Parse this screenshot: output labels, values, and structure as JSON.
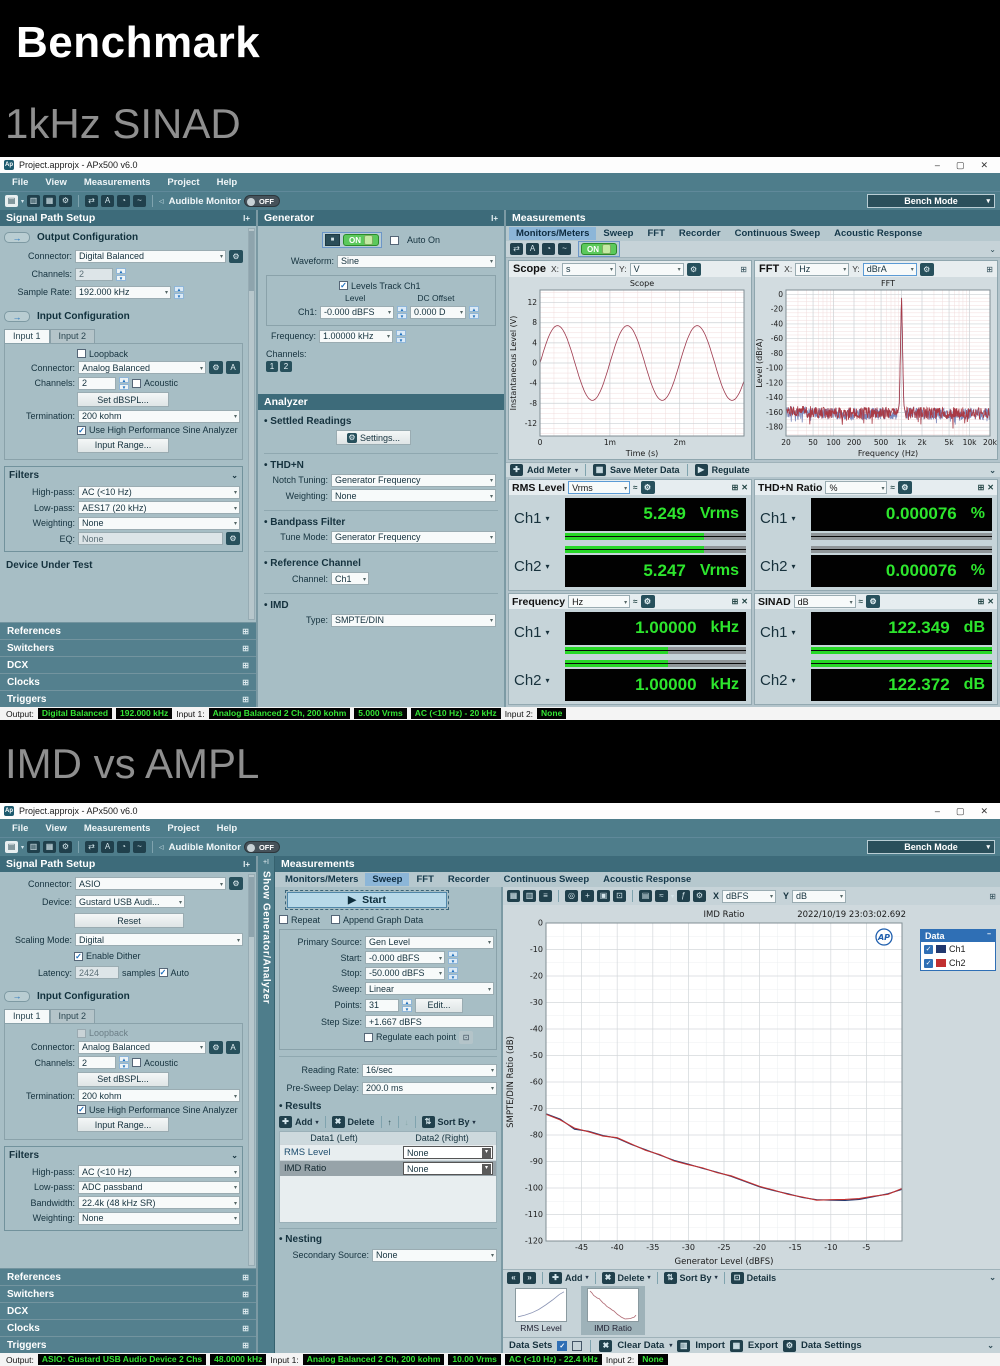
{
  "page": {
    "title": "Benchmark",
    "subtitle1": "1kHz SINAD",
    "subtitle2": "IMD vs AMPL"
  },
  "icons": {
    "min": "–",
    "max": "▢",
    "close": "✕",
    "chev": "▾",
    "gear": "⚙",
    "popout": "⊞",
    "pin": "⌄",
    "play": "▶",
    "add": "✚",
    "del": "✖",
    "up": "↑",
    "down": "↓",
    "sort": "⇅",
    "check": "✓",
    "stop": "■",
    "arrow": "→",
    "speaker": "◁",
    "dock": "I+",
    "dock2": "+I",
    "prev": "«",
    "next": "»",
    "stats": "≈",
    "fx": "ƒ",
    "pg": "▤",
    "fold": "▥",
    "save": "▦",
    "sync": "⇄",
    "aa": "A",
    "clk": "◔",
    "wave": "~",
    "mag": "◎",
    "pan": "+",
    "fit": "▣",
    "cell": "⊡",
    "print": "≡",
    "grip": "⋮"
  },
  "window": {
    "app_icon": "Ap",
    "app_title": "Project.approjx - APx500 v6.0",
    "menus": [
      "File",
      "View",
      "Measurements",
      "Project",
      "Help"
    ],
    "audible_monitor": "Audible Monitor",
    "off": "OFF",
    "on": "ON",
    "bench_mode": "Bench Mode",
    "signal_path": "Signal Path Setup",
    "measurements": "Measurements",
    "meas_tabs": [
      "Monitors/Meters",
      "Sweep",
      "FFT",
      "Recorder",
      "Continuous Sweep",
      "Acoustic Response"
    ],
    "sections": [
      "References",
      "Switchers",
      "DCX",
      "Clocks",
      "Triggers"
    ],
    "out_label": "Output:",
    "in1_label": "Input 1:",
    "in2_label": "Input 2:"
  },
  "shot1": {
    "sp": {
      "out_title": "Output Configuration",
      "con_l": "Connector:",
      "con_v": "Digital Balanced",
      "ch_l": "Channels:",
      "ch_v": "2",
      "sr_l": "Sample Rate:",
      "sr_v": "192.000 kHz",
      "in_title": "Input Configuration",
      "tab1": "Input 1",
      "tab2": "Input 2",
      "loopback": "Loopback",
      "icon_l": "Connector:",
      "icon_v": "Analog Balanced",
      "ich_l": "Channels:",
      "ich_v": "2",
      "acoustic": "Acoustic",
      "dbspl": "Set dBSPL...",
      "term_l": "Termination:",
      "term_v": "200 kohm",
      "hpsa": "Use High Performance Sine Analyzer",
      "irange": "Input Range...",
      "filters": "Filters",
      "hp_l": "High-pass:",
      "hp_v": "AC (<10 Hz)",
      "lp_l": "Low-pass:",
      "lp_v": "AES17 (20 kHz)",
      "wt_l": "Weighting:",
      "wt_v": "None",
      "eq_l": "EQ:",
      "eq_v": "None",
      "dut": "Device Under Test"
    },
    "gen": {
      "header": "Generator",
      "auto": "Auto On",
      "wf_l": "Waveform:",
      "wf_v": "Sine",
      "track": "Levels Track Ch1",
      "lvl_col": "Level",
      "dc_col": "DC Offset",
      "ch1_l": "Ch1:",
      "ch1_v": "-0.000 dBFS",
      "dc_v": "0.000 D",
      "fr_l": "Frequency:",
      "fr_v": "1.00000 kHz",
      "chs_l": "Channels:",
      "b1": "1",
      "b2": "2"
    },
    "ana": {
      "header": "Analyzer",
      "settled": "Settled Readings",
      "settings": "Settings...",
      "thdn": "THD+N",
      "notch_l": "Notch Tuning:",
      "notch_v": "Generator Frequency",
      "wt_l": "Weighting:",
      "wt_v": "None",
      "bp": "Bandpass Filter",
      "tune_l": "Tune Mode:",
      "tune_v": "Generator Frequency",
      "rc": "Reference Channel",
      "rch_l": "Channel:",
      "rch_v": "Ch1",
      "imd": "IMD",
      "type_l": "Type:",
      "type_v": "SMPTE/DIN"
    },
    "mea": {
      "scope": {
        "name": "Scope",
        "xl": "X:",
        "xv": "s",
        "yl": "Y:",
        "yv": "V"
      },
      "fft": {
        "name": "FFT",
        "xl": "X:",
        "xv": "Hz",
        "yl": "Y:",
        "yv": "dBrA"
      },
      "tools": {
        "add": "Add Meter",
        "save": "Save Meter Data",
        "reg": "Regulate"
      },
      "meters": [
        {
          "name": "RMS Level",
          "unit": "Vrms",
          "ch": [
            {
              "label": "Ch1",
              "value": "5.249",
              "unit": "Vrms",
              "bar": 77
            },
            {
              "label": "Ch2",
              "value": "5.247",
              "unit": "Vrms",
              "bar": 77
            }
          ]
        },
        {
          "name": "THD+N Ratio",
          "unit": "%",
          "ch": [
            {
              "label": "Ch1",
              "value": "0.000076",
              "unit": "%",
              "bar": 0
            },
            {
              "label": "Ch2",
              "value": "0.000076",
              "unit": "%",
              "bar": 0
            }
          ]
        },
        {
          "name": "Frequency",
          "unit": "Hz",
          "ch": [
            {
              "label": "Ch1",
              "value": "1.00000",
              "unit": "kHz",
              "bar": 57
            },
            {
              "label": "Ch2",
              "value": "1.00000",
              "unit": "kHz",
              "bar": 57
            }
          ]
        },
        {
          "name": "SINAD",
          "unit": "dB",
          "ch": [
            {
              "label": "Ch1",
              "value": "122.349",
              "unit": "dB",
              "bar": 100
            },
            {
              "label": "Ch2",
              "value": "122.372",
              "unit": "dB",
              "bar": 100
            }
          ]
        }
      ]
    },
    "st": {
      "b1": "Digital Balanced",
      "b2": "192.000 kHz",
      "b3": "Analog Balanced 2 Ch, 200 kohm",
      "b4": "5.000 Vrms",
      "b5": "AC (<10 Hz) - 20 kHz",
      "b6": "None"
    }
  },
  "shot2": {
    "sp": {
      "con_l": "Connector:",
      "con_v": "ASIO",
      "dev_l": "Device:",
      "dev_v": "Gustard USB Audi...",
      "reset": "Reset",
      "scale_l": "Scaling Mode:",
      "scale_v": "Digital",
      "dither": "Enable Dither",
      "lat_l": "Latency:",
      "lat_v": "2424",
      "samples": "samples",
      "auto": "Auto",
      "in_title": "Input Configuration",
      "tab1": "Input 1",
      "tab2": "Input 2",
      "loopback": "Loopback",
      "icon_l": "Connector:",
      "icon_v": "Analog Balanced",
      "ich_l": "Channels:",
      "ich_v": "2",
      "acoustic": "Acoustic",
      "dbspl": "Set dBSPL...",
      "term_l": "Termination:",
      "term_v": "200 kohm",
      "hpsa": "Use High Performance Sine Analyzer",
      "irange": "Input Range...",
      "filters": "Filters",
      "hp_l": "High-pass:",
      "hp_v": "AC (<10 Hz)",
      "lp_l": "Low-pass:",
      "lp_v": "ADC passband",
      "bw_l": "Bandwidth:",
      "bw_v": "22.4k (48 kHz SR)",
      "wt_l": "Weighting:",
      "wt_v": "None"
    },
    "str": "Show Generator/Analyzer",
    "sw": {
      "start": "Start",
      "repeat": "Repeat",
      "append": "Append Graph Data",
      "ps_l": "Primary Source:",
      "ps_v": "Gen Level",
      "start_l": "Start:",
      "start_v": "-0.000 dBFS",
      "stop_l": "Stop:",
      "stop_v": "-50.000 dBFS",
      "sweep_l": "Sweep:",
      "sweep_v": "Linear",
      "pts_l": "Points:",
      "pts_v": "31",
      "edit": "Edit...",
      "step_l": "Step Size:",
      "step_v": "+1.667 dBFS",
      "regulate": "Regulate each point",
      "rr_l": "Reading Rate:",
      "rr_v": "16/sec",
      "psd_l": "Pre-Sweep Delay:",
      "psd_v": "200.0 ms",
      "results": "Results",
      "add": "Add",
      "del": "Delete",
      "sort": "Sort By",
      "col1": "Data1 (Left)",
      "col2": "Data2 (Right)",
      "r1": "RMS Level",
      "r1v": "None",
      "r2": "IMD Ratio",
      "r2v": "None",
      "nesting": "Nesting",
      "ss_l": "Secondary Source:",
      "ss_v": "None"
    },
    "gr": {
      "xl": "X",
      "xv": "dBFS",
      "yl": "Y",
      "yv": "dB",
      "legend_title": "Data",
      "leg1": "Ch1",
      "leg2": "Ch2",
      "nav_add": "Add",
      "nav_del": "Delete",
      "nav_sort": "Sort By",
      "nav_details": "Details",
      "th1": "RMS Level",
      "th2": "IMD Ratio",
      "ds_label": "Data Sets",
      "ds_clear": "Clear Data",
      "ds_import": "Import",
      "ds_export": "Export",
      "ds_settings": "Data Settings",
      "thumb_rms": [
        [
          0,
          0.08
        ],
        [
          0.15,
          0.14
        ],
        [
          0.3,
          0.22
        ],
        [
          0.45,
          0.34
        ],
        [
          0.6,
          0.5
        ],
        [
          0.75,
          0.68
        ],
        [
          0.9,
          0.88
        ],
        [
          1,
          0.97
        ]
      ]
    },
    "st": {
      "b1": "ASIO: Gustard USB Audio Device 2 Chs",
      "b2": "48.0000 kHz",
      "b3": "Analog Balanced 2 Ch, 200 kohm",
      "b4": "10.00 Vrms",
      "b5": "AC (<10 Hz) - 22.4 kHz",
      "b6": "None"
    }
  },
  "chart_data": [
    {
      "id": "scope",
      "type": "line",
      "title": "Scope",
      "xlabel": "Time (s)",
      "ylabel": "Instantaneous Level (V)",
      "xlim": [
        0,
        0.00292
      ],
      "ylim": [
        -14.5,
        14.5
      ],
      "yticks": [
        -12,
        -8,
        -4,
        0,
        4,
        8,
        12
      ],
      "xticks": [
        0,
        0.001,
        0.002
      ],
      "xtick_labels": [
        "0",
        "1m",
        "2m"
      ],
      "grid": true,
      "series": [
        {
          "name": "Ch1",
          "color": "#9e3a4e",
          "waveform": "sine",
          "amplitude_v": 7.42,
          "frequency_hz": 1000
        }
      ]
    },
    {
      "id": "fft",
      "type": "line",
      "title": "FFT",
      "xlabel": "Frequency (Hz)",
      "ylabel": "Level (dBrA)",
      "xscale": "log",
      "xlim": [
        20,
        20000
      ],
      "ylim": [
        -192,
        6
      ],
      "yticks": [
        0,
        -20,
        -40,
        -60,
        -80,
        -100,
        -120,
        -140,
        -160,
        -180
      ],
      "xticks": [
        20,
        50,
        100,
        200,
        500,
        1000,
        2000,
        5000,
        10000,
        20000
      ],
      "xtick_labels": [
        "20",
        "50",
        "100",
        "200",
        "500",
        "1k",
        "2k",
        "5k",
        "10k",
        "20k"
      ],
      "grid": true,
      "series": [
        {
          "name": "Ch1",
          "color": "#7c88bb",
          "noise_floor_db": -162,
          "peak_hz": 1000,
          "peak_db": 0
        },
        {
          "name": "Ch2",
          "color": "#a93a45",
          "noise_floor_db": -161,
          "peak_hz": 1000,
          "peak_db": 0
        }
      ]
    },
    {
      "id": "imd",
      "type": "line",
      "title": "IMD Ratio",
      "timestamp": "2022/10/19 23:03:02.692",
      "logo": "AP",
      "xlabel": "Generator Level (dBFS)",
      "ylabel": "SMPTE/DIN Ratio (dB)",
      "xlim": [
        -50,
        0
      ],
      "ylim": [
        -120,
        0
      ],
      "yticks": [
        0,
        -10,
        -20,
        -30,
        -40,
        -50,
        -60,
        -70,
        -80,
        -90,
        -100,
        -110,
        -120
      ],
      "xticks": [
        -45,
        -40,
        -35,
        -30,
        -25,
        -20,
        -15,
        -10,
        -5
      ],
      "grid": true,
      "legend_position": "right",
      "x": [
        -50,
        -48,
        -46,
        -44,
        -42,
        -40,
        -38,
        -36,
        -34,
        -32,
        -30,
        -28,
        -26,
        -24,
        -22,
        -20,
        -18,
        -16,
        -14,
        -12,
        -10,
        -8,
        -6,
        -4,
        -2,
        0
      ],
      "series": [
        {
          "name": "Ch1",
          "color": "#22386e",
          "values": [
            -72,
            -74,
            -77.8,
            -78.6,
            -80.2,
            -81.2,
            -83.6,
            -85.6,
            -87.6,
            -89.6,
            -91,
            -92.6,
            -94,
            -95.6,
            -97.6,
            -99.6,
            -101,
            -102.2,
            -103.6,
            -104.4,
            -104.6,
            -104.7,
            -104.3,
            -103.3,
            -102.2,
            -100.5
          ]
        },
        {
          "name": "Ch2",
          "color": "#c23030",
          "values": [
            -72.2,
            -74.3,
            -77.4,
            -78.8,
            -80.4,
            -81,
            -83.4,
            -85.8,
            -87.4,
            -89.8,
            -91.2,
            -92.4,
            -94.2,
            -95.4,
            -97.4,
            -99.4,
            -100.8,
            -102.4,
            -103.4,
            -104.6,
            -104.4,
            -104.3,
            -104,
            -103.1,
            -102.4,
            -100.2
          ]
        }
      ]
    }
  ]
}
